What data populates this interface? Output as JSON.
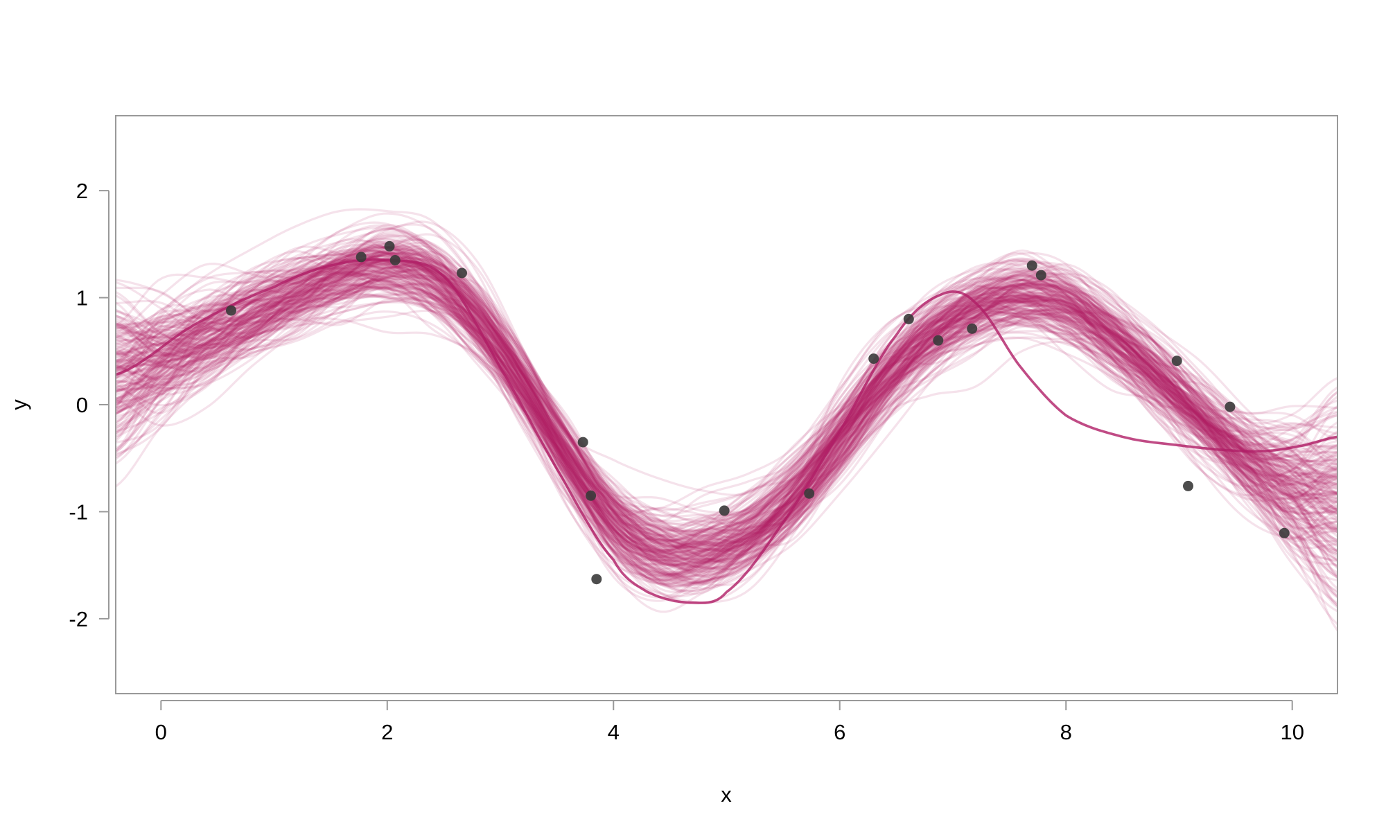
{
  "chart_data": {
    "type": "line",
    "title": "",
    "xlabel": "x",
    "ylabel": "y",
    "xlim": [
      -0.4,
      10.4
    ],
    "ylim": [
      -2.7,
      2.7
    ],
    "x_ticks": [
      0,
      2,
      4,
      6,
      8,
      10
    ],
    "y_ticks": [
      -2,
      -1,
      0,
      1,
      2
    ],
    "x_tick_labels": [
      "0",
      "2",
      "4",
      "6",
      "8",
      "10"
    ],
    "y_tick_labels": [
      "-2",
      "-1",
      "0",
      "1",
      "2"
    ],
    "grid": false,
    "legend": "none",
    "colors": {
      "samples": "#b01e66",
      "mean_line": "#b01e66",
      "points": "#3a3a3a",
      "frame": "#999999"
    },
    "num_posterior_samples": 200,
    "sample_opacity": 0.13,
    "posterior_mean_anchors": {
      "x": [
        -0.4,
        0.3,
        1.0,
        1.8,
        2.4,
        3.0,
        3.5,
        4.0,
        4.5,
        5.0,
        5.5,
        6.0,
        6.5,
        7.0,
        7.5,
        8.0,
        8.5,
        9.0,
        9.5,
        10.0,
        10.4
      ],
      "y": [
        0.25,
        0.6,
        0.95,
        1.3,
        1.3,
        0.55,
        -0.3,
        -1.2,
        -1.45,
        -1.35,
        -1.0,
        -0.3,
        0.4,
        0.8,
        1.05,
        1.0,
        0.55,
        0.1,
        -0.45,
        -0.8,
        -0.9
      ]
    },
    "series": [
      {
        "type": "line",
        "x": [
          -0.4,
          0.3,
          1.0,
          1.5,
          2.0,
          2.5,
          3.0,
          3.5,
          4.0,
          4.3,
          4.7,
          5.0,
          5.5,
          6.0,
          6.5,
          6.9,
          7.2,
          7.6,
          8.0,
          8.5,
          9.0,
          9.5,
          9.8,
          10.1,
          10.4
        ],
        "y": [
          0.28,
          0.75,
          1.1,
          1.3,
          1.35,
          1.2,
          0.35,
          -0.6,
          -1.45,
          -1.75,
          -1.85,
          -1.75,
          -1.1,
          -0.25,
          0.65,
          1.03,
          0.95,
          0.35,
          -0.1,
          -0.3,
          -0.38,
          -0.43,
          -0.43,
          -0.38,
          -0.3
        ]
      },
      {
        "type": "scatter",
        "x": [
          0.62,
          1.77,
          2.02,
          2.07,
          2.66,
          3.73,
          3.8,
          3.85,
          4.98,
          5.73,
          6.3,
          6.61,
          6.87,
          7.17,
          7.7,
          7.78,
          8.98,
          9.08,
          9.45,
          9.93
        ],
        "y": [
          0.88,
          1.38,
          1.48,
          1.35,
          1.23,
          -0.35,
          -0.85,
          -1.63,
          -0.99,
          -0.83,
          0.43,
          0.8,
          0.6,
          0.71,
          1.3,
          1.21,
          0.41,
          -0.76,
          -0.02,
          -1.2
        ]
      }
    ]
  }
}
